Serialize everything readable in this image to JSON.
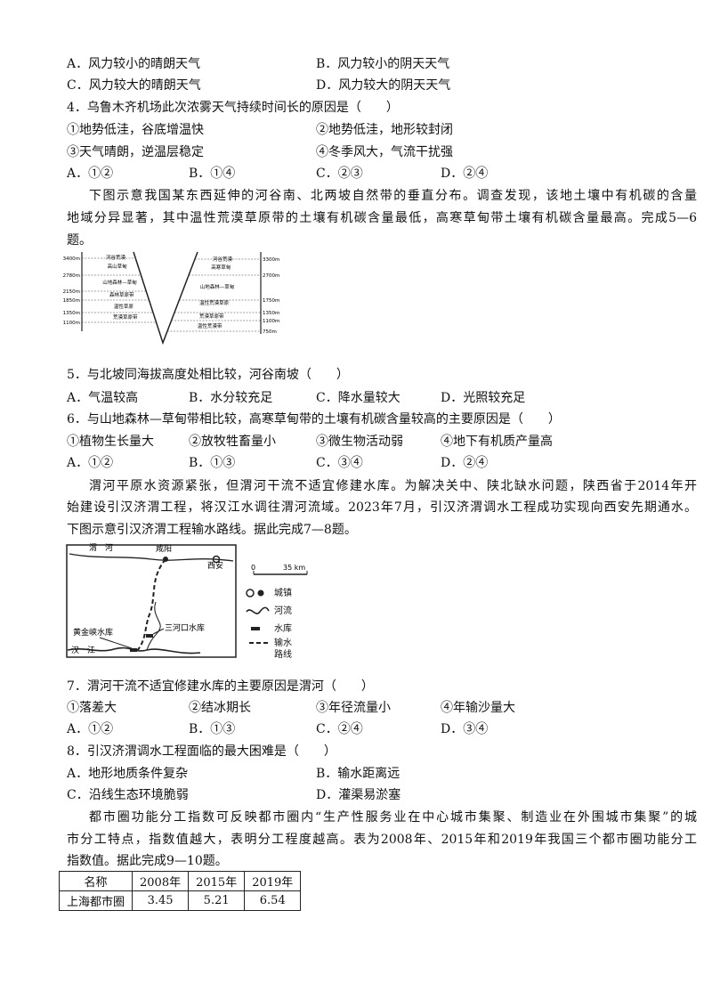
{
  "lines": [
    [
      "A．风力较小的晴朗天气",
      "B．风力较小的阴天天气"
    ],
    [
      "C．风力较大的晴朗天气",
      "D．风力较大的阴天天气"
    ],
    [
      "4．乌鲁木齐机场此次浓雾天气持续时间长的原因是（　　）"
    ],
    [
      "①地势低洼，谷底增温快",
      "②地势低洼，地形较封闭"
    ],
    [
      "③天气晴朗，逆温层稳定",
      "④冬季风大，气流干扰强"
    ],
    [
      "A．①②",
      "B．①④",
      "C．②③",
      "D．②④"
    ],
    [
      "下图示意我国某东西延伸的河谷南、北两坡自然带的垂直分布。调查发现，该地土壤中有机碳的含量"
    ],
    [
      "地域分异显著，其中温性荒漠草原带的土壤有机碳含量最低，高寒草甸带土壤有机碳含量最高。完成5—6"
    ],
    [
      "题。"
    ],
    [
      "5．与北坡同海拔高度处相比较，河谷南坡（　　）"
    ],
    [
      "A．气温较高",
      "B．水分较充足",
      "C．降水量较大",
      "D．光照较充足"
    ],
    [
      "6．与山地森林—草甸带相比较，高寒草甸带的土壤有机碳含量较高的主要原因是（　　）"
    ],
    [
      "①植物生长量大",
      "②放牧牲畜量小",
      "③微生物活动弱",
      "④地下有机质产量高"
    ],
    [
      "A．①②",
      "B．①③",
      "C．③④",
      "D．②④"
    ],
    [
      "渭河平原水资源紧张，但渭河干流不适宜修建水库。为解决关中、陕北缺水问题，陕西省于2014年开"
    ],
    [
      "始建设引汉济渭工程，将汉江水调往渭河流域。2023年7月，引汉济渭调水工程成功实现向西安先期通水。"
    ],
    [
      "下图示意引汉济渭工程输水路线。据此完成7—8题。"
    ],
    [
      "7．渭河干流不适宜修建水库的主要原因是渭河（　　）"
    ],
    [
      "①落差大",
      "②结冰期长",
      "③年径流量小",
      "④年输沙量大"
    ],
    [
      "A．①②",
      "B．①③",
      "C．②④",
      "D．③④"
    ],
    [
      "8．引汉济渭调水工程面临的最大困难是（　　）"
    ],
    [
      "A．地形地质条件复杂",
      "B．输水距离远"
    ],
    [
      "C．沿线生态环境脆弱",
      "D．灌渠易淤塞"
    ],
    [
      "都市圈功能分工指数可反映都市圈内“生产性服务业在中心城市集聚、制造业在外围城市集聚”的城"
    ],
    [
      "市分工特点，指数值越大，表明分工程度越高。表为2008年、2015年和2019年我国三个都市圈功能分工"
    ],
    [
      "指数值。据此完成9—10题。"
    ]
  ],
  "figure1": {
    "left_altitudes": [
      "3400m",
      "2780m",
      "2150m",
      "1850m",
      "1350m",
      "1100m"
    ],
    "right_altitudes": [
      "3300m",
      "2700m",
      "1750m",
      "1350m",
      "1100m",
      "750m"
    ],
    "left_zones": [
      "河谷荒漠",
      "高山草甸",
      "山地森林—草甸",
      "森林草原带",
      "温性草原",
      "荒漠草原带"
    ],
    "right_zones": [
      "河谷荒漠",
      "高寒草甸",
      "山地森林—草甸",
      "温性荒漠草原",
      "荒漠草原带",
      "温性荒漠带"
    ]
  },
  "figure2": {
    "places": [
      "渭　河",
      "咸阳",
      "西安",
      "黄金峡水库",
      "三河口水库",
      "汉　江"
    ],
    "scale": [
      "0",
      "35 km"
    ],
    "legend": [
      "城镇",
      "河流",
      "水库",
      "输水路线"
    ]
  },
  "table": {
    "header": [
      "名称",
      "2008年",
      "2015年",
      "2019年"
    ],
    "rows": [
      [
        "上海都市圈",
        3.45,
        5.21,
        6.54
      ]
    ]
  }
}
